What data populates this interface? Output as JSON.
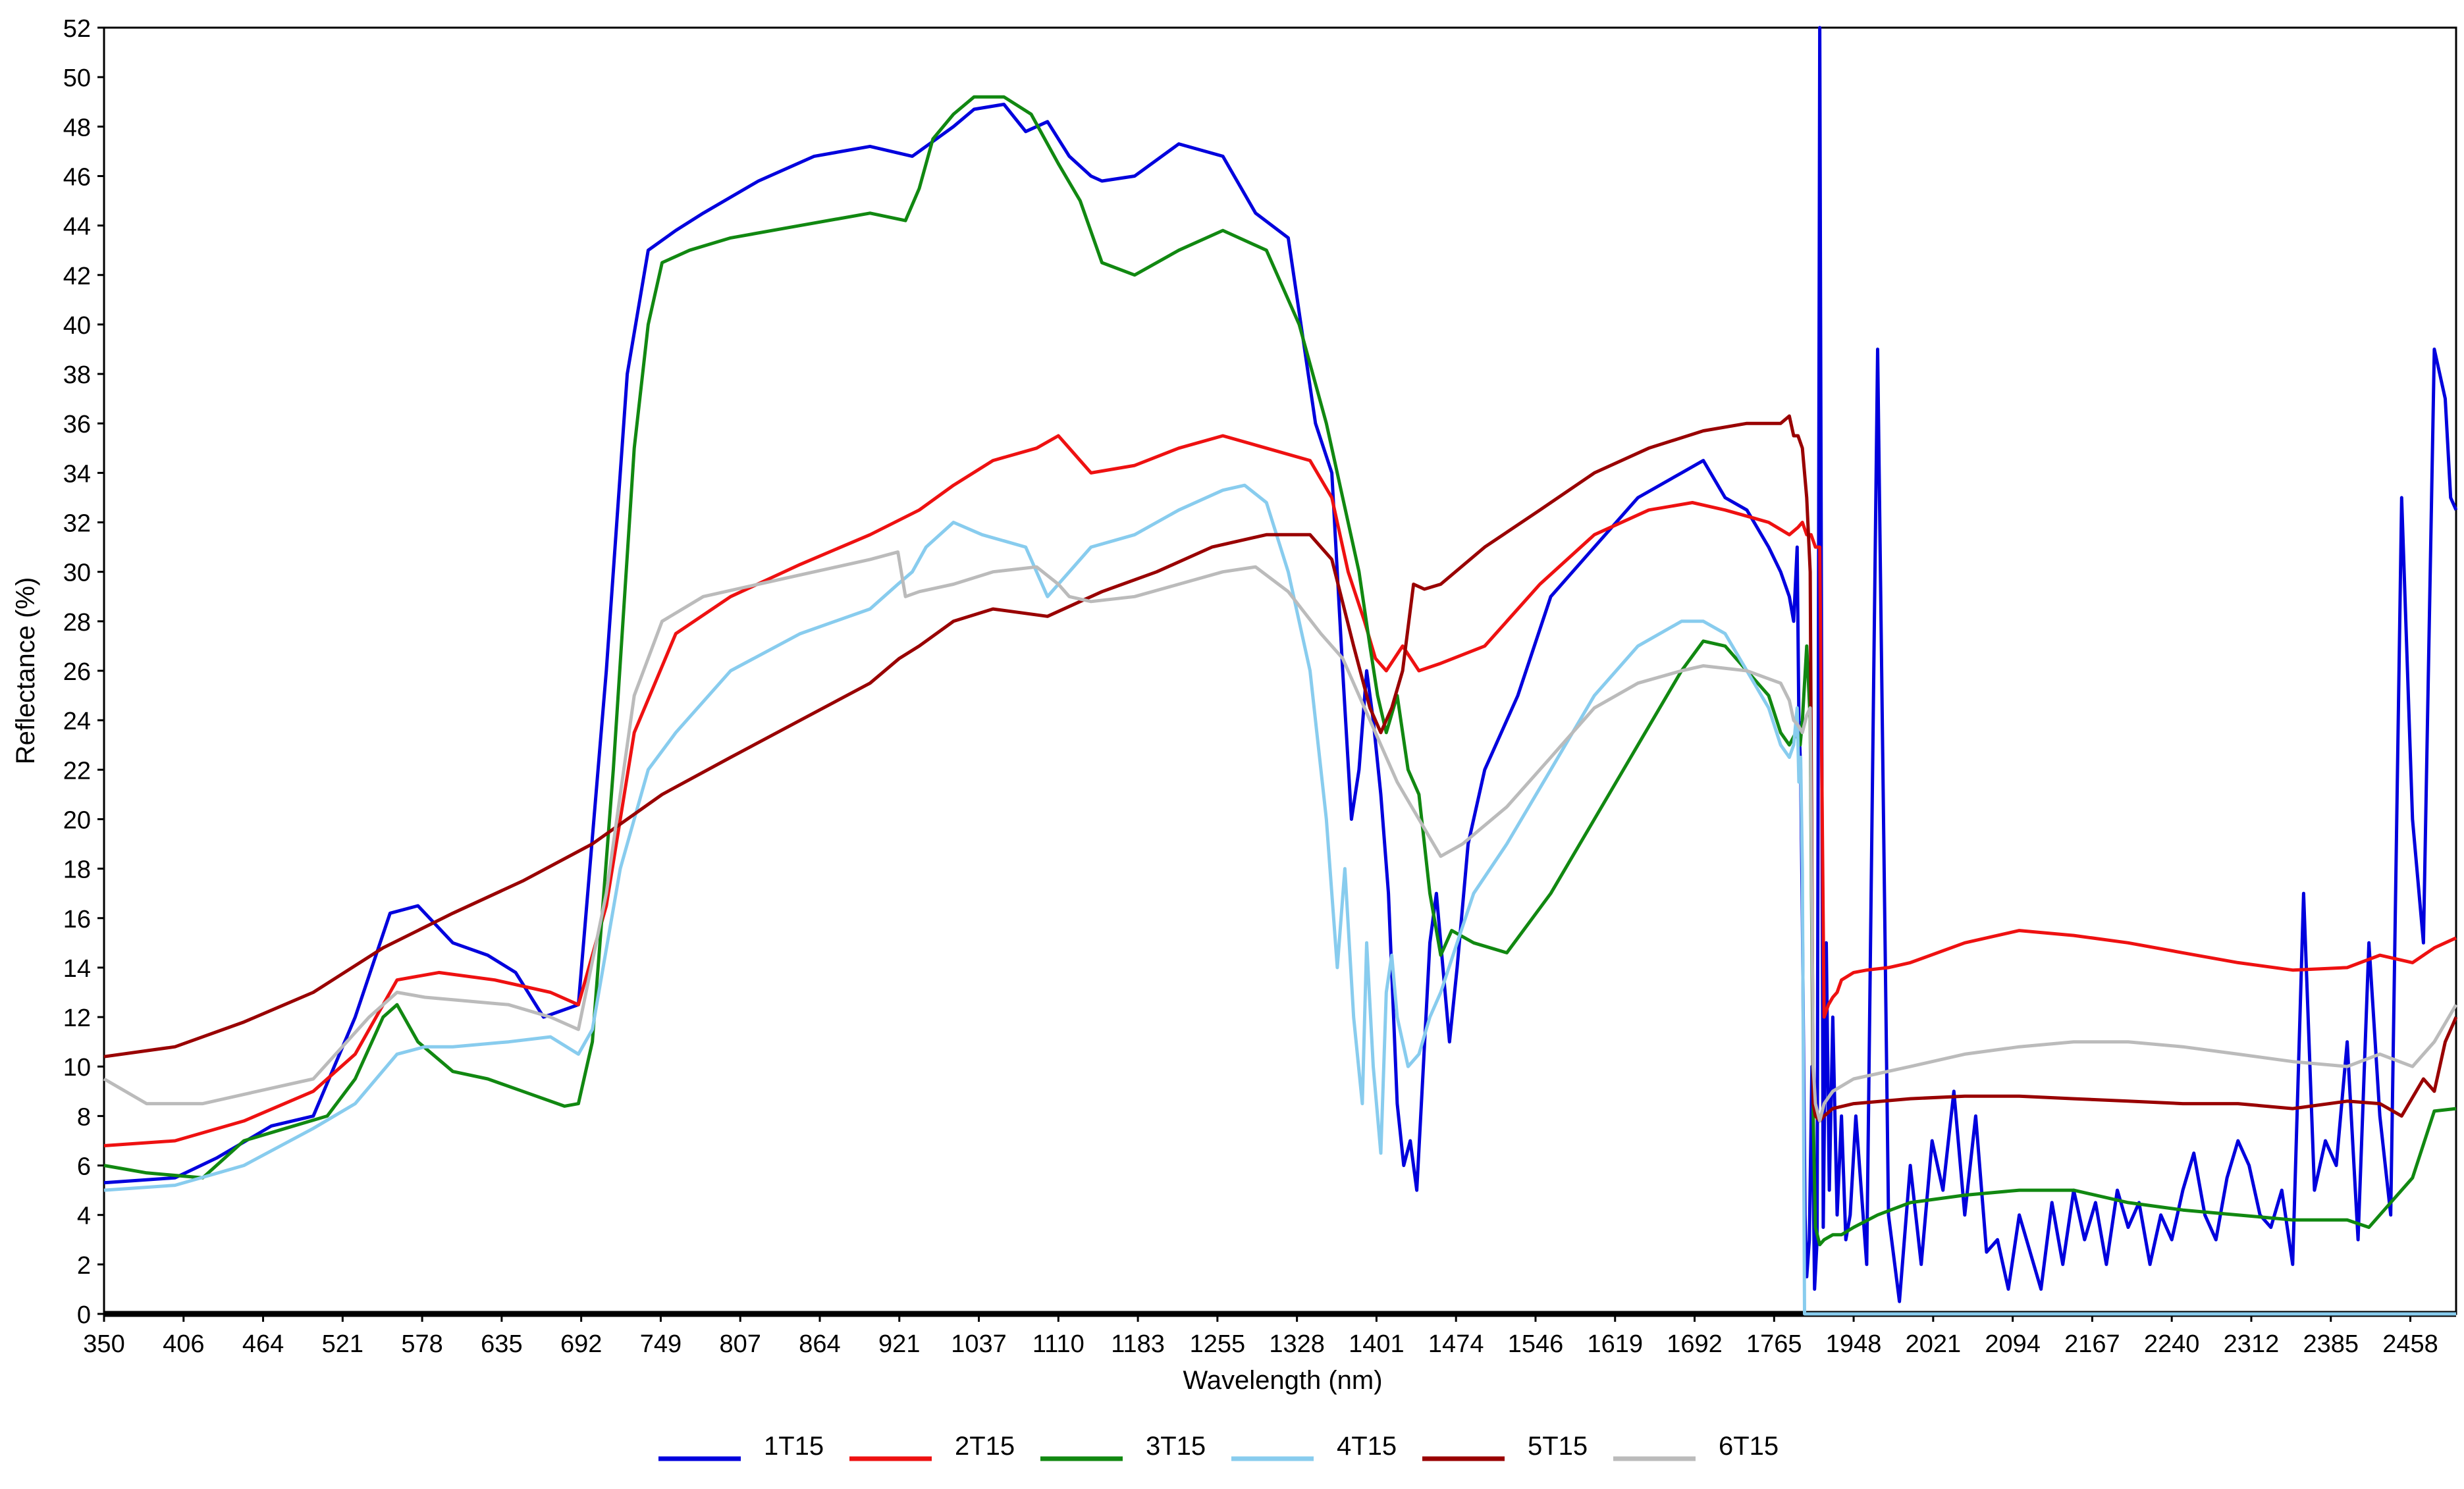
{
  "chart_data": {
    "type": "line",
    "xlabel": "Wavelength (nm)",
    "ylabel": "Reflectance (%)",
    "xlim": [
      350,
      2500
    ],
    "ylim": [
      0,
      52
    ],
    "x_ticks": [
      "350",
      "406",
      "464",
      "521",
      "578",
      "635",
      "692",
      "749",
      "807",
      "864",
      "921",
      "1037",
      "1110",
      "1183",
      "1255",
      "1328",
      "1401",
      "1474",
      "1546",
      "1619",
      "1692",
      "1765",
      "1948",
      "2021",
      "2094",
      "2167",
      "2240",
      "2312",
      "2385",
      "2458"
    ],
    "y_ticks": [
      "0",
      "2",
      "4",
      "6",
      "8",
      "10",
      "12",
      "14",
      "16",
      "18",
      "20",
      "22",
      "24",
      "26",
      "28",
      "30",
      "32",
      "34",
      "36",
      "38",
      "40",
      "42",
      "44",
      "46",
      "48",
      "50",
      "52"
    ],
    "grid": false,
    "legend_position": "bottom",
    "series": [
      {
        "name": "1T15",
        "color": "#0000dd",
        "x": [
          350,
          400,
          430,
          470,
          500,
          530,
          555,
          575,
          600,
          625,
          645,
          665,
          690,
          710,
          725,
          740,
          760,
          780,
          820,
          860,
          900,
          940,
          970,
          1000,
          1030,
          1060,
          1080,
          1100,
          1120,
          1140,
          1150,
          1180,
          1220,
          1260,
          1290,
          1320,
          1345,
          1360,
          1370,
          1378,
          1385,
          1392,
          1398,
          1405,
          1412,
          1420,
          1426,
          1432,
          1438,
          1444,
          1450,
          1456,
          1462,
          1468,
          1475,
          1485,
          1500,
          1530,
          1560,
          1600,
          1640,
          1680,
          1700,
          1720,
          1740,
          1760,
          1780,
          1800,
          1810,
          1818,
          1822,
          1826,
          1830,
          1836,
          1840,
          1846,
          1852,
          1858,
          1864,
          1870,
          1878,
          1885,
          1892,
          1900,
          1910,
          1920,
          1930,
          1940,
          1950,
          1960,
          1970,
          1980,
          1990,
          2000,
          2010,
          2020,
          2030,
          2040,
          2050,
          2060,
          2070,
          2080,
          2090,
          2100,
          2110,
          2120,
          2130,
          2140,
          2150,
          2160,
          2170,
          2180,
          2190,
          2200,
          2210,
          2220,
          2230,
          2240,
          2250,
          2260,
          2270,
          2280,
          2290,
          2300,
          2310,
          2320,
          2330,
          2340,
          2350,
          2360,
          2370,
          2380,
          2390,
          2400,
          2410,
          2420,
          2430,
          2440,
          2450,
          2460,
          2470,
          2480,
          2490,
          2495,
          2500
        ],
        "y": [
          5.3,
          5.5,
          6.3,
          7.6,
          8.0,
          12.0,
          16.2,
          16.5,
          15.0,
          14.5,
          13.8,
          12.0,
          12.5,
          26.0,
          38.0,
          43.0,
          43.8,
          44.5,
          45.8,
          46.8,
          47.2,
          46.8,
          47.4,
          48.0,
          48.7,
          48.9,
          47.8,
          48.2,
          46.8,
          46.0,
          45.8,
          46.0,
          47.3,
          46.8,
          44.5,
          43.5,
          36.0,
          34.0,
          26.0,
          20.0,
          22.0,
          26.0,
          24.0,
          21.0,
          17.0,
          8.5,
          6.0,
          7.0,
          5.0,
          10.0,
          15.0,
          17.0,
          14.0,
          11.0,
          14.0,
          19.0,
          22.0,
          25.0,
          29.0,
          31.0,
          33.0,
          34.0,
          34.5,
          33.0,
          32.5,
          31.0,
          30.0,
          29.0,
          28.0,
          31.0,
          24.0,
          22.0,
          16.0,
          4.0,
          1.5,
          3.0,
          10.0,
          1.0,
          3.0,
          52.0,
          3.5,
          15.0,
          5.0,
          12.0,
          4.0,
          8.0,
          3.0,
          4.0,
          8.0,
          2.0,
          39.0,
          4.0,
          0.5,
          6.0,
          2.0,
          7.0,
          5.0,
          9.0,
          4.0,
          8.0,
          2.5,
          3.0,
          1.0,
          4.0,
          2.5,
          1.0,
          4.5,
          2.0,
          5.0,
          3.0,
          4.5,
          2.0,
          5.0,
          3.5,
          4.5,
          2.0,
          4.0,
          3.0,
          5.0,
          6.5,
          4.0,
          3.0,
          5.5,
          7.0,
          6.0,
          4.0,
          3.5,
          5.0,
          2.0,
          17.0,
          5.0,
          7.0,
          6.0,
          11.0,
          3.0,
          15.0,
          8.0,
          4.0,
          33.0,
          20.0,
          15.0,
          39.0,
          37.0,
          33.0,
          32.5
        ]
      },
      {
        "name": "2T15",
        "color": "#ee1111",
        "x": [
          350,
          400,
          450,
          500,
          530,
          560,
          590,
          630,
          670,
          690,
          710,
          730,
          760,
          800,
          850,
          900,
          950,
          1000,
          1050,
          1090,
          1110,
          1120,
          1140,
          1180,
          1220,
          1260,
          1300,
          1340,
          1360,
          1375,
          1390,
          1400,
          1410,
          1425,
          1440,
          1460,
          1500,
          1550,
          1600,
          1650,
          1690,
          1720,
          1760,
          1800,
          1820,
          1830,
          1840,
          1850,
          1860,
          1870,
          1880,
          1890,
          1900,
          1910,
          1920,
          1948,
          1960,
          1980,
          2000,
          2050,
          2100,
          2150,
          2200,
          2250,
          2300,
          2350,
          2400,
          2430,
          2460,
          2480,
          2500
        ],
        "y": [
          6.8,
          7.0,
          7.8,
          9.0,
          10.5,
          13.5,
          13.8,
          13.5,
          13.0,
          12.5,
          16.5,
          23.5,
          27.5,
          29.0,
          30.3,
          31.5,
          32.5,
          33.5,
          34.5,
          35.0,
          35.5,
          35.0,
          34.0,
          34.3,
          35.0,
          35.5,
          35.0,
          34.5,
          33.0,
          30.0,
          28.0,
          26.5,
          26.0,
          27.0,
          26.0,
          26.3,
          27.0,
          29.5,
          31.5,
          32.5,
          32.8,
          32.5,
          32.0,
          31.5,
          31.8,
          32.0,
          31.5,
          31.5,
          31.0,
          31.0,
          12.0,
          12.5,
          12.8,
          13.0,
          13.5,
          13.8,
          13.9,
          14.0,
          14.2,
          15.0,
          15.5,
          15.3,
          15.0,
          14.6,
          14.2,
          13.9,
          14.0,
          14.5,
          14.2,
          14.8,
          15.2
        ]
      },
      {
        "name": "3T15",
        "color": "#118811",
        "x": [
          350,
          380,
          420,
          450,
          480,
          510,
          530,
          550,
          560,
          575,
          600,
          625,
          650,
          680,
          690,
          700,
          715,
          730,
          740,
          750,
          770,
          800,
          850,
          900,
          930,
          950,
          970,
          1000,
          1030,
          1060,
          1085,
          1110,
          1130,
          1150,
          1180,
          1220,
          1260,
          1300,
          1330,
          1355,
          1370,
          1385,
          1395,
          1402,
          1410,
          1420,
          1430,
          1440,
          1450,
          1460,
          1470,
          1490,
          1520,
          1560,
          1600,
          1640,
          1680,
          1700,
          1720,
          1740,
          1760,
          1780,
          1800,
          1815,
          1825,
          1830,
          1840,
          1848,
          1855,
          1860,
          1870,
          1880,
          1900,
          1920,
          1948,
          1970,
          2000,
          2050,
          2100,
          2150,
          2200,
          2250,
          2300,
          2350,
          2400,
          2420,
          2440,
          2460,
          2480,
          2500
        ],
        "y": [
          6.0,
          5.7,
          5.5,
          7.0,
          7.5,
          8.0,
          9.5,
          12.0,
          12.5,
          11.0,
          9.8,
          9.5,
          9.0,
          8.4,
          8.5,
          11.0,
          22.0,
          35.0,
          40.0,
          42.5,
          43.0,
          43.5,
          44.0,
          44.5,
          44.2,
          45.5,
          47.5,
          48.5,
          49.2,
          49.2,
          48.5,
          46.5,
          45.0,
          42.5,
          42.0,
          43.0,
          43.8,
          43.0,
          40.0,
          36.0,
          33.0,
          30.0,
          27.0,
          25.0,
          23.5,
          25.0,
          22.0,
          21.0,
          17.0,
          14.5,
          15.5,
          15.0,
          14.6,
          17.0,
          20.0,
          23.0,
          26.0,
          27.2,
          27.0,
          26.0,
          25.0,
          23.5,
          23.0,
          23.5,
          23.0,
          24.0,
          27.0,
          24.0,
          8.0,
          3.5,
          2.8,
          3.0,
          3.2,
          3.2,
          3.5,
          4.0,
          4.5,
          4.8,
          5.0,
          5.0,
          4.5,
          4.2,
          4.0,
          3.8,
          3.8,
          3.5,
          4.5,
          5.5,
          8.2,
          8.3
        ]
      },
      {
        "name": "4T15",
        "color": "#88ccee",
        "x": [
          350,
          400,
          450,
          500,
          530,
          560,
          580,
          600,
          640,
          670,
          690,
          700,
          720,
          740,
          760,
          800,
          850,
          900,
          920,
          940,
          960,
          980,
          1000,
          1040,
          1080,
          1100,
          1110,
          1120,
          1140,
          1180,
          1220,
          1260,
          1280,
          1300,
          1320,
          1340,
          1355,
          1365,
          1372,
          1380,
          1388,
          1392,
          1398,
          1405,
          1410,
          1415,
          1420,
          1430,
          1440,
          1450,
          1460,
          1475,
          1490,
          1520,
          1560,
          1600,
          1640,
          1680,
          1700,
          1720,
          1740,
          1760,
          1780,
          1800,
          1810,
          1818,
          1822,
          1826,
          1830,
          1835,
          1840,
          1860,
          1880,
          1900,
          1948,
          2000,
          2100,
          2200,
          2300,
          2400,
          2500
        ],
        "y": [
          5.0,
          5.2,
          6.0,
          7.5,
          8.5,
          10.5,
          10.8,
          10.8,
          11.0,
          11.2,
          10.5,
          11.5,
          18.0,
          22.0,
          23.5,
          26.0,
          27.5,
          28.5,
          29.5,
          30.0,
          31.0,
          31.5,
          32.0,
          31.5,
          31.0,
          29.0,
          29.5,
          30.0,
          31.0,
          31.5,
          32.5,
          33.3,
          33.5,
          32.8,
          30.0,
          26.0,
          20.0,
          14.0,
          18.0,
          12.0,
          8.5,
          15.0,
          10.0,
          6.5,
          13.0,
          14.5,
          12.0,
          10.0,
          10.5,
          12.0,
          13.0,
          15.0,
          17.0,
          19.0,
          22.0,
          25.0,
          27.0,
          28.0,
          28.0,
          27.5,
          26.0,
          24.5,
          23.0,
          22.5,
          23.0,
          24.5,
          21.5,
          22.5,
          18.0,
          0.0,
          0.0,
          0.0,
          0.0,
          0.0,
          0.0,
          0.0,
          0.0,
          0.0,
          0.0,
          0.0,
          0.0
        ]
      },
      {
        "name": "5T15",
        "color": "#990000",
        "x": [
          350,
          400,
          450,
          500,
          550,
          600,
          650,
          700,
          750,
          800,
          850,
          900,
          921,
          950,
          1000,
          1050,
          1100,
          1150,
          1200,
          1250,
          1300,
          1340,
          1360,
          1380,
          1395,
          1405,
          1415,
          1425,
          1435,
          1445,
          1460,
          1500,
          1550,
          1600,
          1650,
          1700,
          1740,
          1780,
          1800,
          1810,
          1820,
          1830,
          1840,
          1848,
          1855,
          1860,
          1870,
          1880,
          1900,
          1948,
          2000,
          2050,
          2100,
          2150,
          2200,
          2250,
          2300,
          2350,
          2400,
          2430,
          2450,
          2470,
          2480,
          2490,
          2500
        ],
        "y": [
          10.4,
          10.8,
          11.8,
          13.0,
          14.8,
          16.2,
          17.5,
          19.0,
          21.0,
          22.5,
          24.0,
          25.5,
          26.5,
          27.0,
          28.0,
          28.5,
          28.2,
          29.2,
          30.0,
          31.0,
          31.5,
          31.5,
          30.5,
          27.0,
          24.5,
          23.5,
          24.5,
          26.0,
          29.5,
          29.3,
          29.5,
          31.0,
          32.5,
          34.0,
          35.0,
          35.7,
          36.0,
          36.0,
          36.3,
          35.5,
          35.5,
          35.0,
          33.0,
          30.0,
          8.5,
          8.0,
          7.8,
          8.0,
          8.3,
          8.5,
          8.7,
          8.8,
          8.8,
          8.7,
          8.6,
          8.5,
          8.5,
          8.3,
          8.6,
          8.5,
          8.0,
          9.5,
          9.0,
          11.0,
          12.0
        ]
      },
      {
        "name": "6T15",
        "color": "#bbbbbb",
        "x": [
          350,
          380,
          420,
          460,
          500,
          540,
          560,
          580,
          600,
          640,
          670,
          690,
          710,
          730,
          750,
          780,
          820,
          860,
          900,
          920,
          930,
          950,
          1000,
          1050,
          1090,
          1110,
          1120,
          1140,
          1180,
          1220,
          1260,
          1290,
          1320,
          1350,
          1370,
          1385,
          1400,
          1420,
          1440,
          1460,
          1480,
          1520,
          1560,
          1600,
          1640,
          1680,
          1700,
          1740,
          1780,
          1800,
          1810,
          1820,
          1830,
          1840,
          1848,
          1855,
          1860,
          1870,
          1880,
          1900,
          1948,
          2000,
          2050,
          2100,
          2150,
          2200,
          2250,
          2300,
          2350,
          2400,
          2430,
          2460,
          2480,
          2500
        ],
        "y": [
          9.5,
          8.5,
          8.5,
          9.0,
          9.5,
          12.0,
          13.0,
          12.8,
          12.7,
          12.5,
          12.0,
          11.5,
          17.0,
          25.0,
          28.0,
          29.0,
          29.5,
          30.0,
          30.5,
          30.8,
          29.0,
          29.2,
          29.5,
          30.0,
          30.2,
          29.5,
          29.0,
          28.8,
          29.0,
          29.5,
          30.0,
          30.2,
          29.2,
          27.5,
          26.5,
          25.0,
          23.5,
          21.5,
          20.0,
          18.5,
          19.0,
          20.5,
          22.5,
          24.5,
          25.5,
          26.0,
          26.2,
          26.0,
          25.5,
          24.8,
          24.0,
          23.8,
          23.5,
          24.2,
          24.5,
          10.0,
          8.5,
          7.8,
          8.5,
          9.0,
          9.5,
          10.0,
          10.5,
          10.8,
          11.0,
          11.0,
          10.8,
          10.5,
          10.2,
          10.0,
          10.5,
          10.0,
          11.0,
          12.5
        ]
      }
    ]
  }
}
